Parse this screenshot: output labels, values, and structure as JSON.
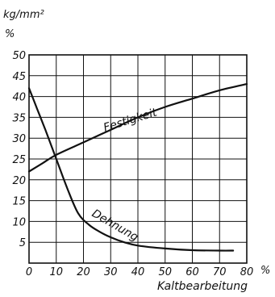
{
  "chart_data": {
    "type": "line",
    "y_unit_top": "kg/mm²",
    "y_unit_bottom": "%",
    "xlabel": "Kaltbearbeitung",
    "x_unit": "%",
    "xlim": [
      0,
      80
    ],
    "ylim": [
      0,
      50
    ],
    "grid": true,
    "x_ticks": [
      0,
      10,
      20,
      30,
      40,
      50,
      60,
      70,
      80
    ],
    "x_tick_labels": [
      "0",
      "10",
      "20",
      "30",
      "40",
      "50",
      "60",
      "70",
      "80"
    ],
    "y_ticks": [
      0,
      5,
      10,
      15,
      20,
      25,
      30,
      35,
      40,
      45,
      50
    ],
    "y_tick_labels": [
      "",
      "5",
      "10",
      "15",
      "20",
      "25",
      "30",
      "35",
      "40",
      "45",
      "50"
    ],
    "series": [
      {
        "name": "Festigkeit",
        "x": [
          0,
          5,
          10,
          20,
          30,
          40,
          50,
          60,
          70,
          80
        ],
        "y": [
          22,
          24,
          26,
          29,
          32,
          35,
          37.5,
          39.5,
          41.5,
          43
        ]
      },
      {
        "name": "Dehnung",
        "x": [
          0,
          3,
          6,
          10,
          14,
          18,
          22,
          26,
          30,
          35,
          40,
          50,
          60,
          70,
          75
        ],
        "y": [
          42,
          37,
          32,
          25,
          18,
          12,
          9.2,
          7.5,
          6.2,
          5,
          4.2,
          3.5,
          3.1,
          3,
          3
        ]
      }
    ]
  }
}
